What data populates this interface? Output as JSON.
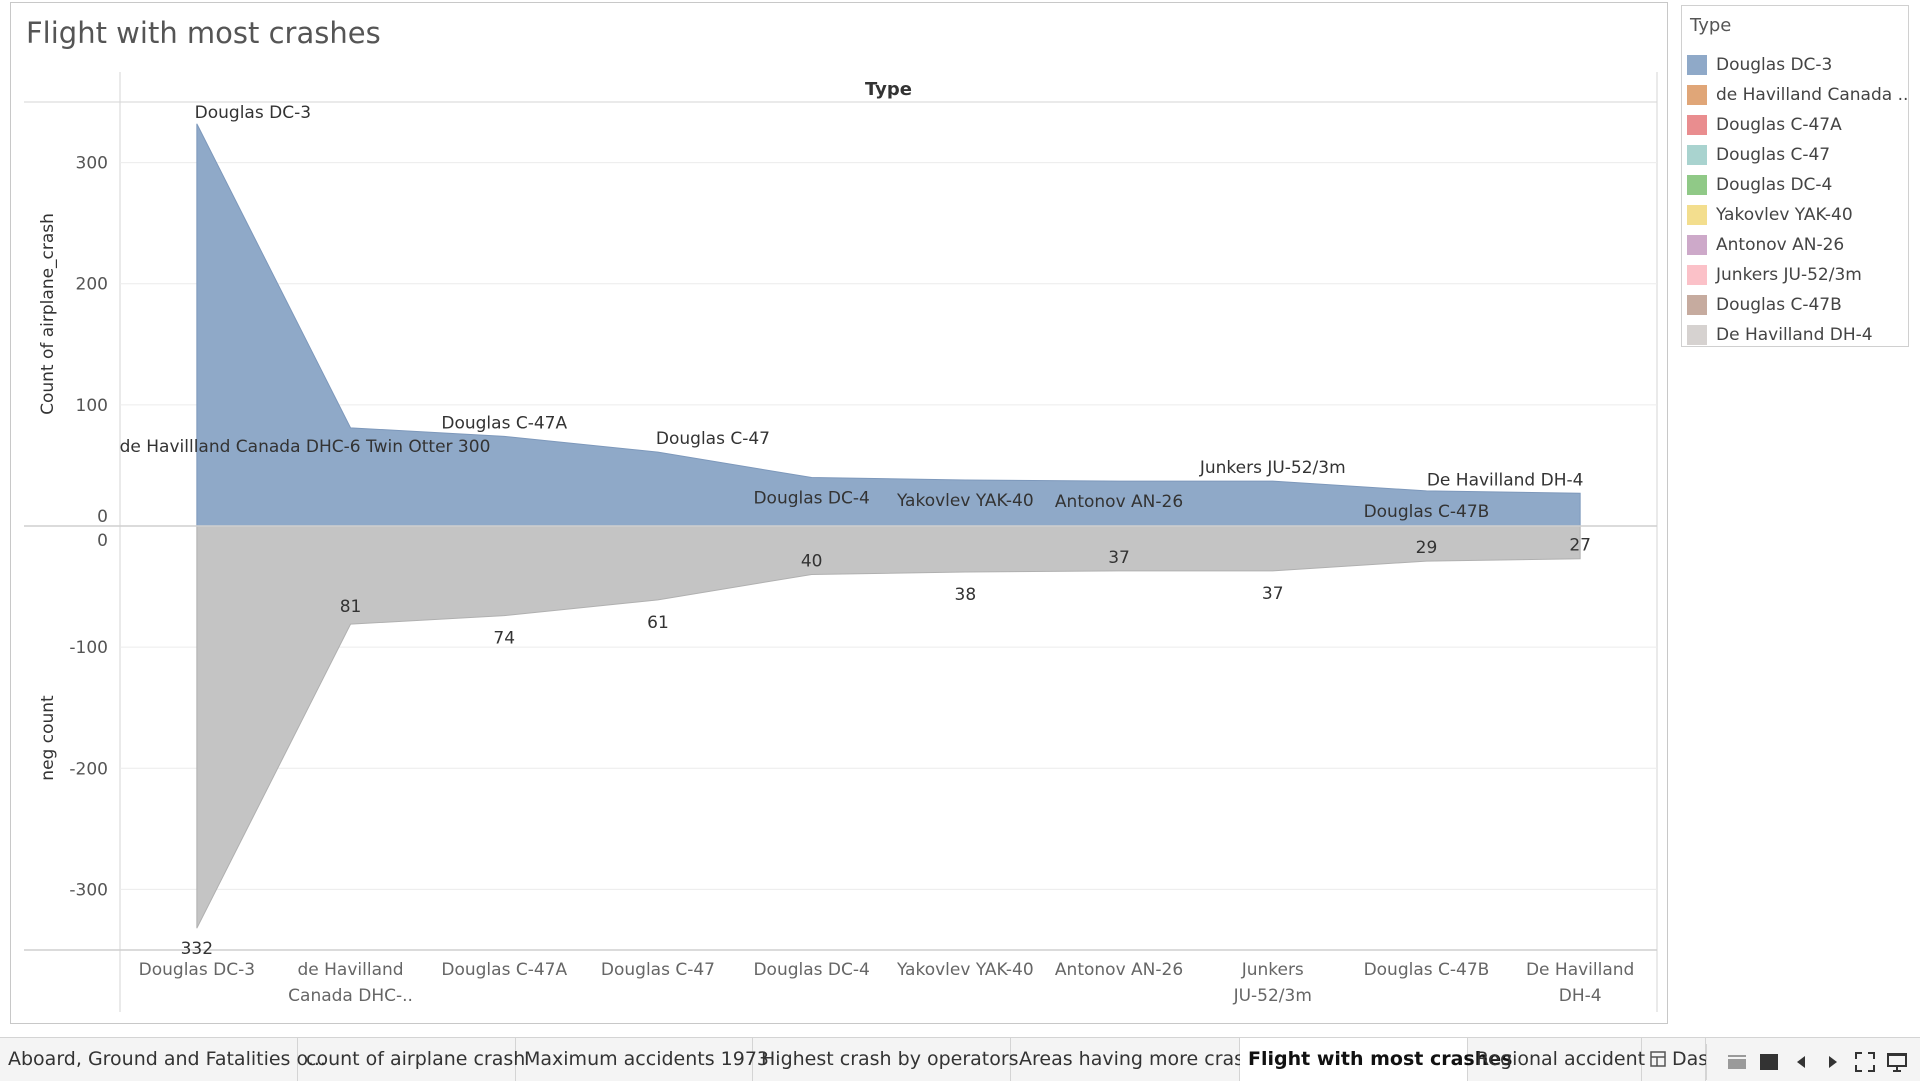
{
  "sheet_title": "Flight with most crashes",
  "chart_data": {
    "type": "area",
    "column_header": "Type",
    "categories": [
      "Douglas DC-3",
      "de Havilland Canada DHC-6 Twin Otter 300",
      "Douglas C-47A",
      "Douglas C-47",
      "Douglas DC-4",
      "Yakovlev YAK-40",
      "Antonov AN-26",
      "Junkers JU-52/3m",
      "Douglas C-47B",
      "De Havilland DH-4"
    ],
    "axis_labels": [
      [
        "Douglas DC-3"
      ],
      [
        "de Havilland",
        "Canada DHC-.."
      ],
      [
        "Douglas C-47A"
      ],
      [
        "Douglas C-47"
      ],
      [
        "Douglas DC-4"
      ],
      [
        "Yakovlev YAK-40"
      ],
      [
        "Antonov AN-26"
      ],
      [
        "Junkers",
        "JU-52/3m"
      ],
      [
        "Douglas C-47B"
      ],
      [
        "De Havilland",
        "DH-4"
      ]
    ],
    "series": [
      {
        "name": "Count of airplane_crash",
        "values": [
          332,
          81,
          74,
          61,
          40,
          38,
          37,
          37,
          29,
          27
        ],
        "color": "#8fa9c8"
      },
      {
        "name": "neg count",
        "values": [
          -332,
          -81,
          -74,
          -61,
          -40,
          -38,
          -37,
          -37,
          -29,
          -27
        ],
        "color": "#c4c4c4"
      }
    ],
    "top_mark_labels": [
      "Douglas DC-3",
      "de Havillland Canada DHC-6 Twin Otter 300",
      "Douglas C-47A",
      "Douglas C-47",
      "Douglas DC-4",
      "Yakovlev YAK-40",
      "Antonov AN-26",
      "Junkers JU-52/3m",
      "Douglas C-47B",
      "De Havilland DH-4"
    ],
    "bottom_mark_labels": [
      "332",
      "81",
      "74",
      "61",
      "40",
      "38",
      "37",
      "37",
      "29",
      "27"
    ],
    "top_axis": {
      "label": "Count of airplane_crash",
      "ticks": [
        0,
        100,
        200,
        300
      ],
      "range": [
        0,
        350
      ]
    },
    "bottom_axis": {
      "label": "neg count",
      "ticks": [
        0,
        -100,
        -200,
        -300
      ],
      "range": [
        -350,
        0
      ]
    },
    "grid": true,
    "legend_position": "right"
  },
  "legend": {
    "title": "Type",
    "items": [
      {
        "label": "Douglas DC-3",
        "color": "#8fa9c8"
      },
      {
        "label": "de Havilland Canada ..",
        "color": "#e0a678"
      },
      {
        "label": "Douglas C-47A",
        "color": "#e98d8f"
      },
      {
        "label": "Douglas C-47",
        "color": "#a9d3cf"
      },
      {
        "label": "Douglas DC-4",
        "color": "#90c987"
      },
      {
        "label": "Yakovlev YAK-40",
        "color": "#f3de8e"
      },
      {
        "label": "Antonov AN-26",
        "color": "#cda9c9"
      },
      {
        "label": "Junkers JU-52/3m",
        "color": "#fbc1c8"
      },
      {
        "label": "Douglas C-47B",
        "color": "#c6ab9f"
      },
      {
        "label": "De Havilland DH-4",
        "color": "#d6d2d0"
      }
    ]
  },
  "tabs": [
    {
      "label": "Aboard, Ground and Fatalities o...",
      "active": false
    },
    {
      "label": "count of airplane crash",
      "active": false
    },
    {
      "label": "Maximum accidents 1973",
      "active": false
    },
    {
      "label": "Highest crash by operators",
      "active": false
    },
    {
      "label": "Areas having more crash",
      "active": false
    },
    {
      "label": "Flight with most crashes",
      "active": true
    },
    {
      "label": "Regional accident",
      "active": false
    },
    {
      "label": "Das",
      "active": false,
      "icon": "dashboard-grid-icon"
    }
  ],
  "nav_controls": [
    "sheet-list-icon",
    "filmstrip-icon",
    "previous-sheet-icon",
    "next-sheet-icon",
    "fullscreen-icon",
    "presentation-icon"
  ]
}
